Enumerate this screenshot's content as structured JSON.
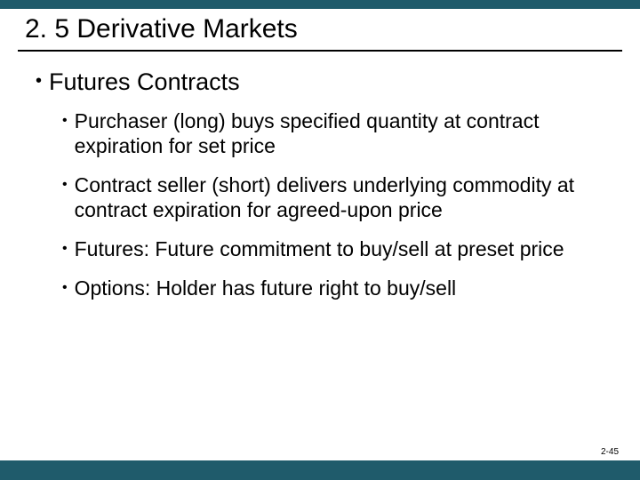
{
  "colors": {
    "bar": "#1f5b6b",
    "text": "#000000",
    "background": "#ffffff"
  },
  "typography": {
    "title_fontsize": 30,
    "level1_fontsize": 27,
    "level2_fontsize": 23,
    "pagenum_fontsize": 10
  },
  "title": "2. 5 Derivative Markets",
  "bullets": {
    "level1": "Futures Contracts",
    "level2": [
      "Purchaser (long) buys specified quantity at contract expiration for set price",
      "Contract seller (short) delivers underlying commodity at contract expiration for agreed-upon price",
      "Futures: Future commitment to buy/sell at preset price",
      "Options: Holder has future right to buy/sell"
    ]
  },
  "page_number": "2-45"
}
